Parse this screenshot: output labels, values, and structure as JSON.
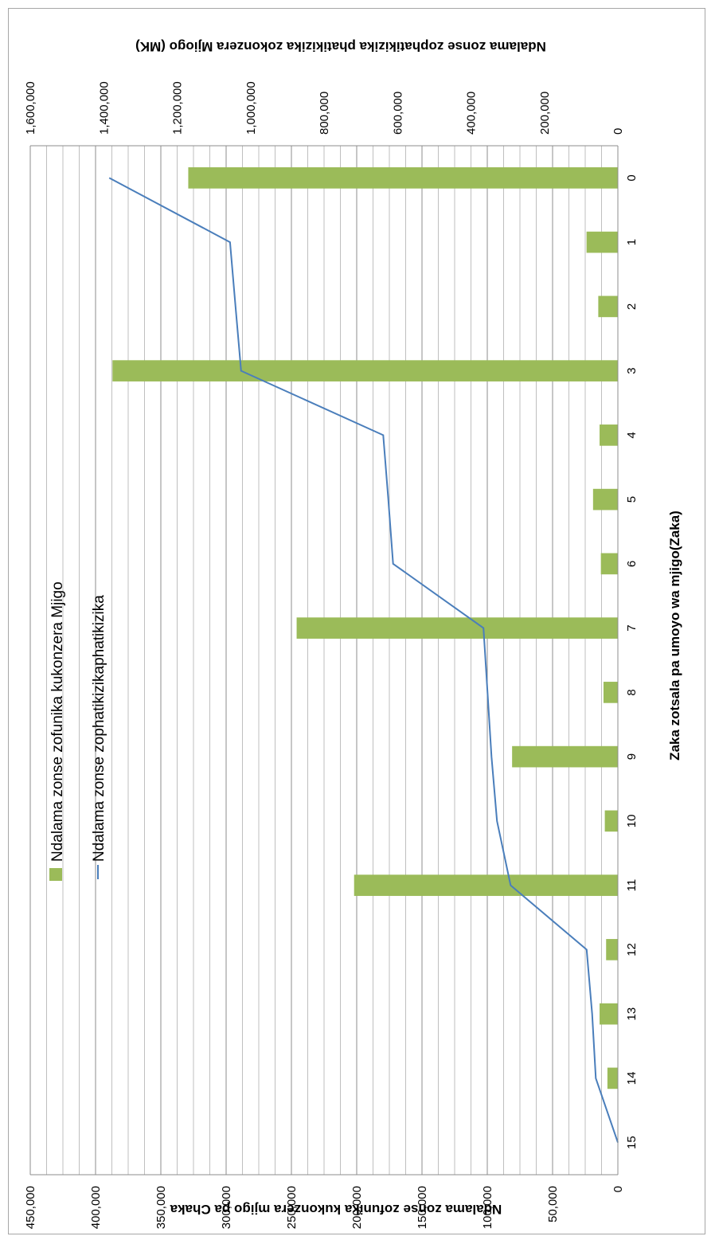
{
  "chart_data": {
    "type": "bar+line",
    "categories": [
      "0",
      "1",
      "2",
      "3",
      "4",
      "5",
      "6",
      "7",
      "8",
      "9",
      "10",
      "11",
      "12",
      "13",
      "14",
      "15"
    ],
    "xlabel": "Zaka zotsala pa umoyo wa mjigo(Zaka)",
    "series": [
      {
        "name": "Ndalama zonse zofunika kukonzera Mjigo",
        "type": "bar",
        "axis": "primary",
        "color": "#9bbb59",
        "values": [
          329000,
          24000,
          15000,
          387000,
          14000,
          19000,
          13000,
          246000,
          11000,
          81000,
          10000,
          202000,
          9000,
          14000,
          8000,
          0
        ]
      },
      {
        "name": "Ndalama zonse zophatikizikaphatikizika",
        "type": "line",
        "axis": "secondary",
        "color": "#4a7ebb",
        "values": [
          1385000,
          1056000,
          1041000,
          1026000,
          639000,
          625000,
          612000,
          366000,
          355000,
          344000,
          329000,
          292000,
          85000,
          70000,
          60000,
          0
        ]
      }
    ],
    "primary_axis": {
      "label": "Ndalama zonse zofunika kukonzera mjigo pa Chaka",
      "ylim": [
        0,
        450000
      ],
      "ticks": [
        "0",
        "50,000",
        "100,000",
        "150,000",
        "200,000",
        "250,000",
        "300,000",
        "350,000",
        "400,000",
        "450,000"
      ]
    },
    "secondary_axis": {
      "label": "Ndalama zonse zophatikizika phatikizika zokonzera Mjiogo (MK)",
      "ylim": [
        0,
        1600000
      ],
      "ticks": [
        "0",
        "200,000",
        "400,000",
        "600,000",
        "800,000",
        "1,000,000",
        "1,200,000",
        "1,400,000",
        "1,600,000"
      ]
    },
    "grid": true,
    "orientation": "rotated 90° clockwise",
    "legend_position": "upper-left of plot"
  }
}
